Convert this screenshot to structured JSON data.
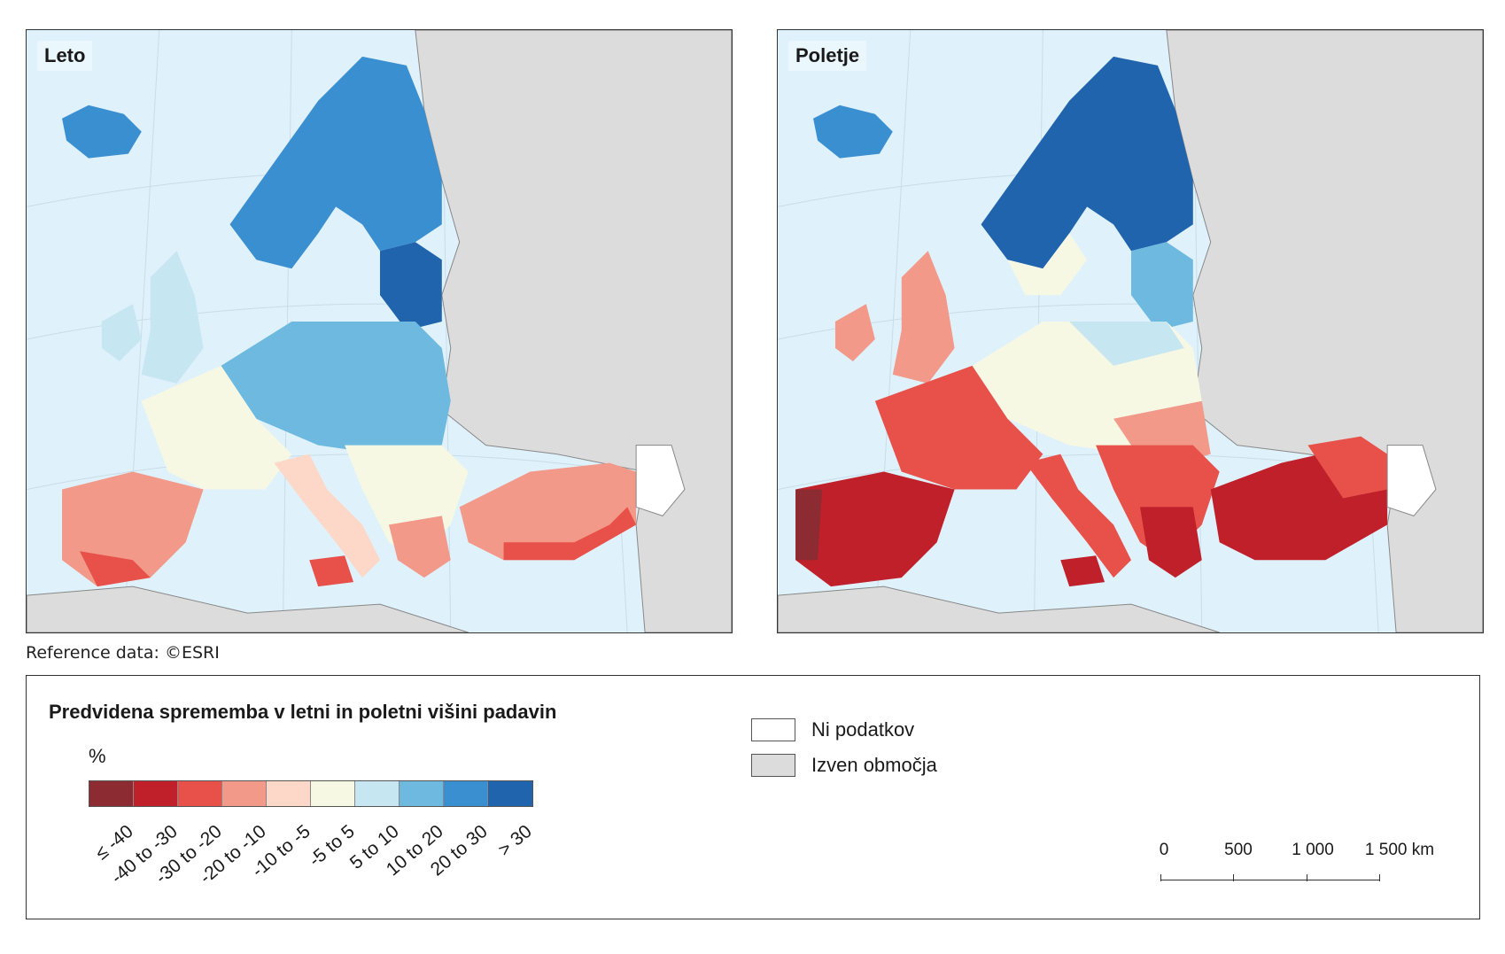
{
  "maps": {
    "left": {
      "title": "Leto"
    },
    "right": {
      "title": "Poletje"
    }
  },
  "reference": "Reference data: ©ESRI",
  "legend": {
    "title": "Predvidena sprememba v letni in poletni višini padavin",
    "unit": "%",
    "classes": [
      {
        "label": "≤ -40",
        "color": "#8c2b31"
      },
      {
        "label": "-40 to -30",
        "color": "#c0202a"
      },
      {
        "label": "-30 to -20",
        "color": "#e8504a"
      },
      {
        "label": "-20 to -10",
        "color": "#f2998a"
      },
      {
        "label": "-10 to -5",
        "color": "#fdd8c8"
      },
      {
        "label": "-5 to 5",
        "color": "#f7f8e4"
      },
      {
        "label": "5 to 10",
        "color": "#c6e6f2"
      },
      {
        "label": "10 to 20",
        "color": "#6db9e0"
      },
      {
        "label": "20 to 30",
        "color": "#3a8fd0"
      },
      {
        "label": "> 30",
        "color": "#1f64ad"
      }
    ],
    "no_data": {
      "label": "Ni podatkov",
      "color": "#ffffff"
    },
    "outside": {
      "label": "Izven območja",
      "color": "#dcdcdc"
    }
  },
  "scalebar": {
    "labels": [
      "0",
      "500",
      "1 000",
      "1 500 km"
    ]
  },
  "colors": {
    "sea": "#dff1fb",
    "outside": "#dcdcdc",
    "border": "#777777"
  }
}
